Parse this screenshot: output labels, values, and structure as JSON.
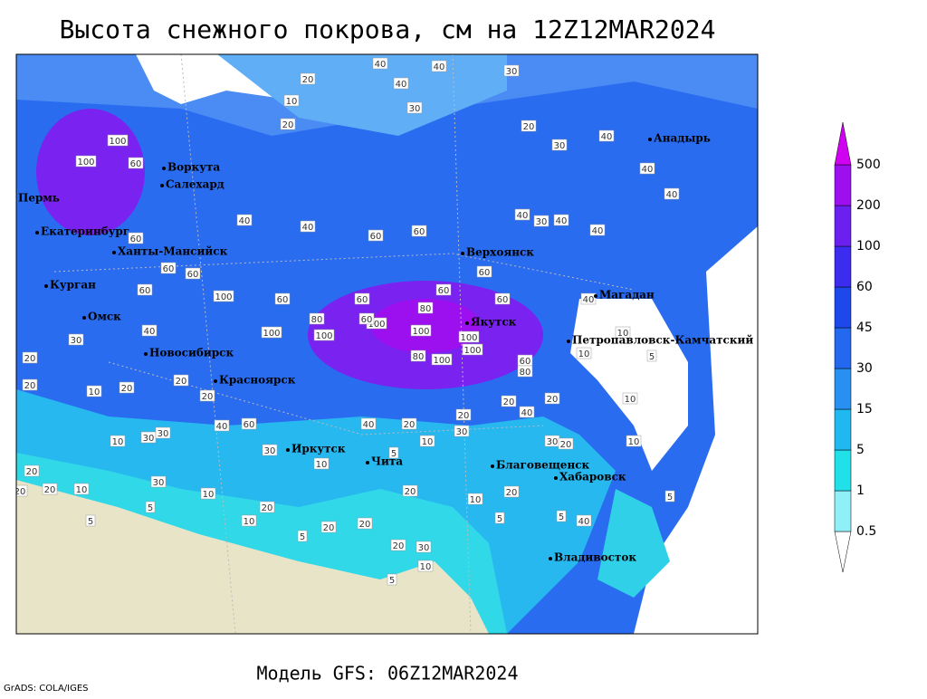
{
  "title": "Высота снежного покрова, см на 12Z12MAR2024",
  "footer": "Модель GFS: 06Z12MAR2024",
  "credit": "GrADS: COLA/IGES",
  "cities": [
    "Воркута",
    "Салехард",
    "Пермь",
    "Екатеринбург",
    "Ханты-Мансийск",
    "Курган",
    "Омск",
    "Новосибирск",
    "Красноярск",
    "Иркутск",
    "Чита",
    "Благовещенск",
    "Хабаровск",
    "Владивосток",
    "Верхоянск",
    "Якутск",
    "Магадан",
    "Анадырь",
    "Петропавловск-Камчатский"
  ],
  "contour_labels": [
    40,
    40,
    30,
    20,
    40,
    10,
    30,
    20,
    20,
    30,
    40,
    100,
    100,
    60,
    40,
    40,
    40,
    60,
    60,
    40,
    30,
    40,
    40,
    40,
    60,
    60,
    60,
    60,
    100,
    60,
    60,
    60,
    60,
    60,
    40,
    80,
    100,
    100,
    80,
    100,
    100,
    100,
    100,
    100,
    80,
    60,
    80,
    60,
    40,
    10,
    5,
    10,
    30,
    20,
    20,
    10,
    20,
    20,
    20,
    10,
    60,
    40,
    40,
    20,
    20,
    20,
    20,
    40,
    10,
    30,
    30,
    30,
    10,
    5,
    10,
    30,
    30,
    20,
    10,
    20,
    20,
    10,
    30,
    5,
    10,
    20,
    10,
    5,
    20,
    20,
    20,
    10,
    20,
    5,
    5,
    40,
    5,
    20,
    30,
    10,
    5,
    5,
    20
  ],
  "legend": {
    "levels": [
      0.5,
      1,
      5,
      15,
      30,
      45,
      60,
      100,
      200,
      500
    ],
    "colors": [
      "#ffffff",
      "#90f0f8",
      "#20e0e8",
      "#20b8f0",
      "#2890f0",
      "#2468f0",
      "#1c48ec",
      "#3c2cf0",
      "#6c20f0",
      "#9c10f0",
      "#d000f0"
    ]
  }
}
